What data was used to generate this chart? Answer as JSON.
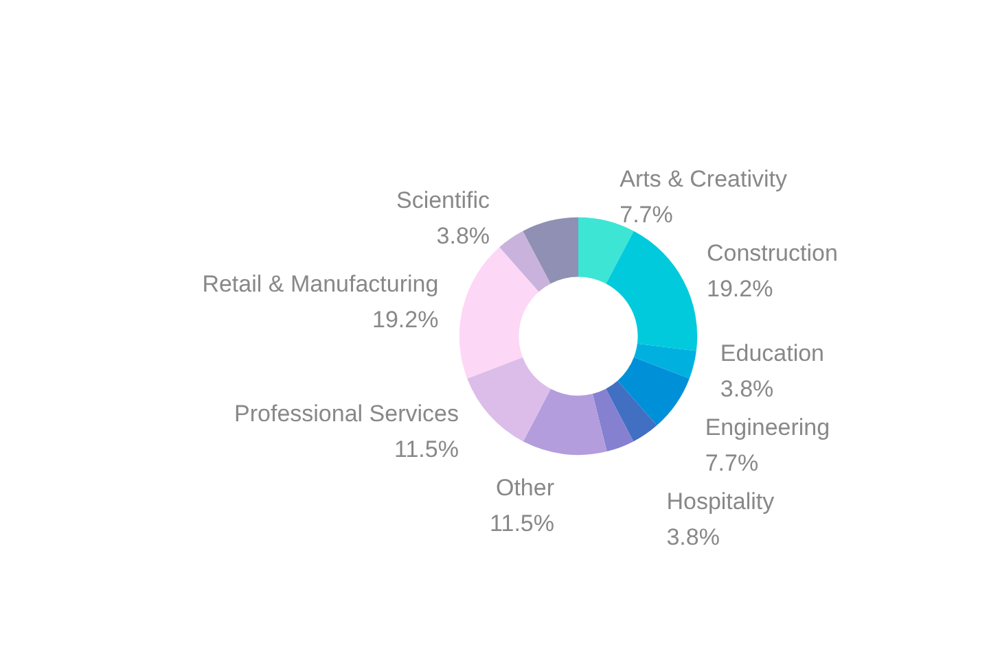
{
  "chart_data": {
    "type": "donut",
    "categories": [
      "Arts & Creativity",
      "Construction",
      "Education",
      "Engineering",
      "Hospitality",
      null,
      "Other",
      "Professional Services",
      "Retail & Manufacturing",
      "Scientific",
      null
    ],
    "values": [
      7.7,
      19.2,
      3.8,
      7.7,
      3.8,
      3.8,
      11.5,
      11.5,
      19.2,
      3.8,
      7.7
    ],
    "value_labels": [
      "7.7%",
      "19.2%",
      "3.8%",
      "7.7%",
      "3.8%",
      null,
      "11.5%",
      "11.5%",
      "19.2%",
      "3.8%",
      null
    ],
    "colors": [
      "#3de5d5",
      "#00cadc",
      "#00b1e0",
      "#0090d8",
      "#416fc2",
      "#8580d0",
      "#b39ddc",
      "#dcbde9",
      "#fdd7f6",
      "#c9b3dc",
      "#8f90b3"
    ],
    "legend": false
  }
}
